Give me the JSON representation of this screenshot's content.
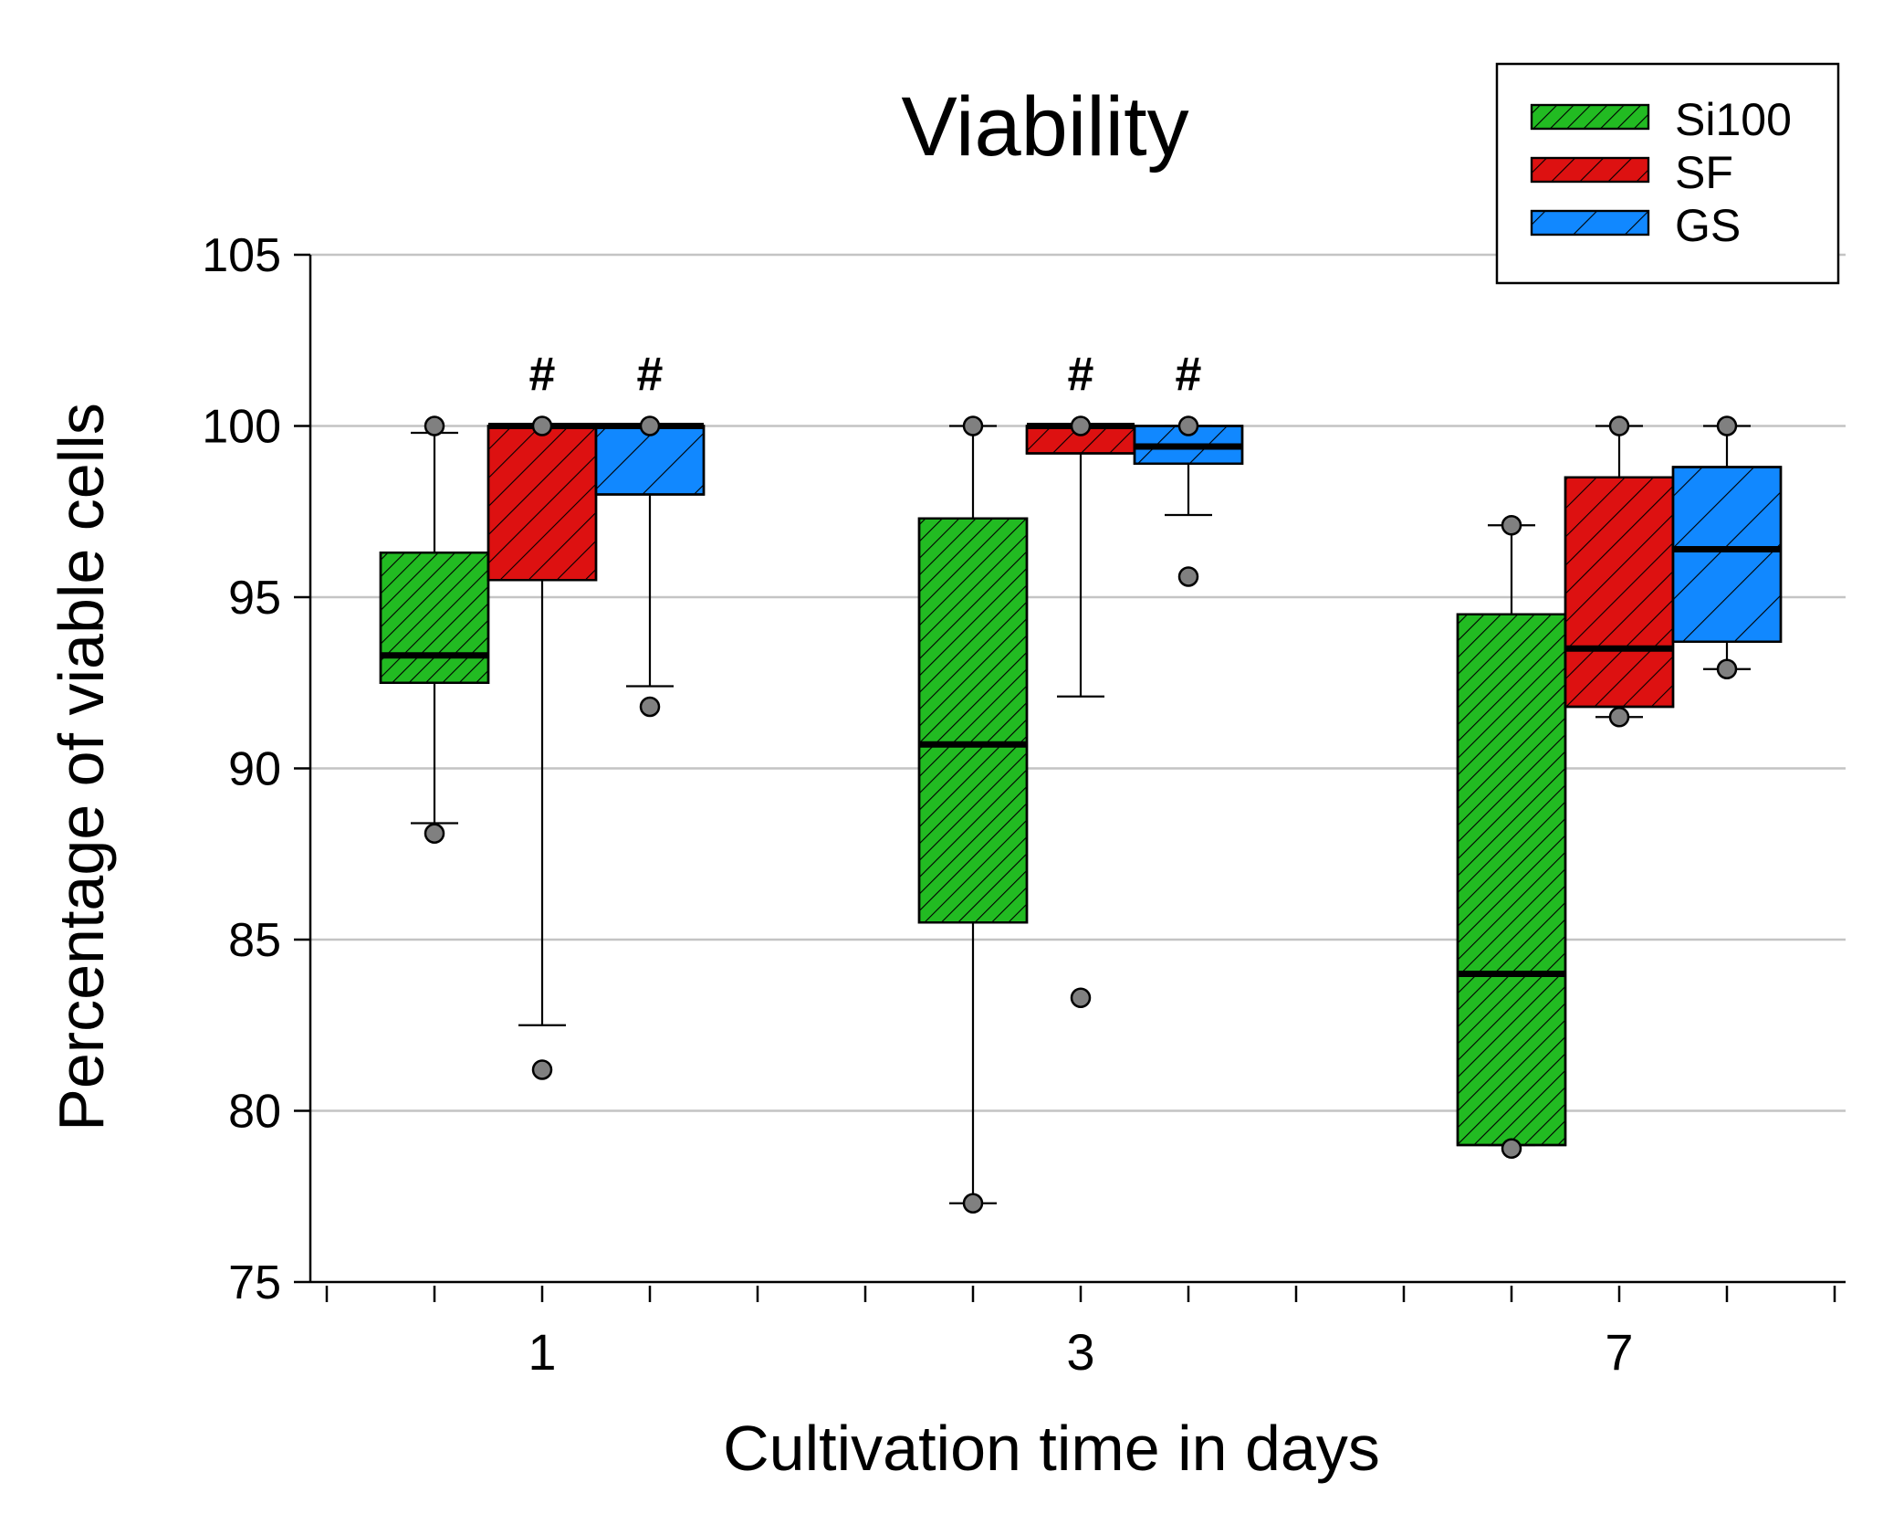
{
  "chart_data": {
    "type": "box",
    "title": "Viability",
    "xlabel": "Cultivation time in days",
    "ylabel": "Percentage of viable cells",
    "ylim": [
      75,
      105
    ],
    "yticks": [
      "75",
      "80",
      "85",
      "90",
      "95",
      "100",
      "105"
    ],
    "categories": [
      "1",
      "3",
      "7"
    ],
    "grid": true,
    "legend_position": "top-right",
    "series": [
      {
        "name": "Si100",
        "color": "#22bb22",
        "hatch": "dense",
        "boxes": [
          {
            "day": "1",
            "whisker_low": 88.4,
            "q1": 92.5,
            "median": 93.3,
            "q3": 96.3,
            "whisker_high": 99.8,
            "outliers": [
              100,
              88.1
            ],
            "flag": ""
          },
          {
            "day": "3",
            "whisker_low": 77.3,
            "q1": 85.5,
            "median": 90.7,
            "q3": 97.3,
            "whisker_high": 100,
            "outliers": [
              100,
              77.3
            ],
            "flag": ""
          },
          {
            "day": "7",
            "whisker_low": 79.0,
            "q1": 79.0,
            "median": 84.0,
            "q3": 94.5,
            "whisker_high": 97.1,
            "outliers": [
              97.1,
              78.9
            ],
            "flag": ""
          }
        ]
      },
      {
        "name": "SF",
        "color": "#dd1111",
        "hatch": "medium",
        "boxes": [
          {
            "day": "1",
            "whisker_low": 82.5,
            "q1": 95.5,
            "median": 100,
            "q3": 100,
            "whisker_high": 100,
            "outliers": [
              100,
              81.2
            ],
            "flag": "#"
          },
          {
            "day": "3",
            "whisker_low": 92.1,
            "q1": 99.2,
            "median": 100,
            "q3": 100,
            "whisker_high": 100,
            "outliers": [
              100,
              83.3
            ],
            "flag": "#"
          },
          {
            "day": "7",
            "whisker_low": 91.5,
            "q1": 91.8,
            "median": 93.5,
            "q3": 98.5,
            "whisker_high": 100,
            "outliers": [
              100,
              91.5
            ],
            "flag": ""
          }
        ]
      },
      {
        "name": "GS",
        "color": "#1188ff",
        "hatch": "sparse",
        "boxes": [
          {
            "day": "1",
            "whisker_low": 92.4,
            "q1": 98.0,
            "median": 100,
            "q3": 100,
            "whisker_high": 100,
            "outliers": [
              100,
              91.8
            ],
            "flag": "#"
          },
          {
            "day": "3",
            "whisker_low": 97.4,
            "q1": 98.9,
            "median": 99.4,
            "q3": 100,
            "whisker_high": 100,
            "outliers": [
              100,
              95.6
            ],
            "flag": "#"
          },
          {
            "day": "7",
            "whisker_low": 92.9,
            "q1": 93.7,
            "median": 96.4,
            "q3": 98.8,
            "whisker_high": 100,
            "outliers": [
              100,
              92.9
            ],
            "flag": ""
          }
        ]
      }
    ]
  }
}
